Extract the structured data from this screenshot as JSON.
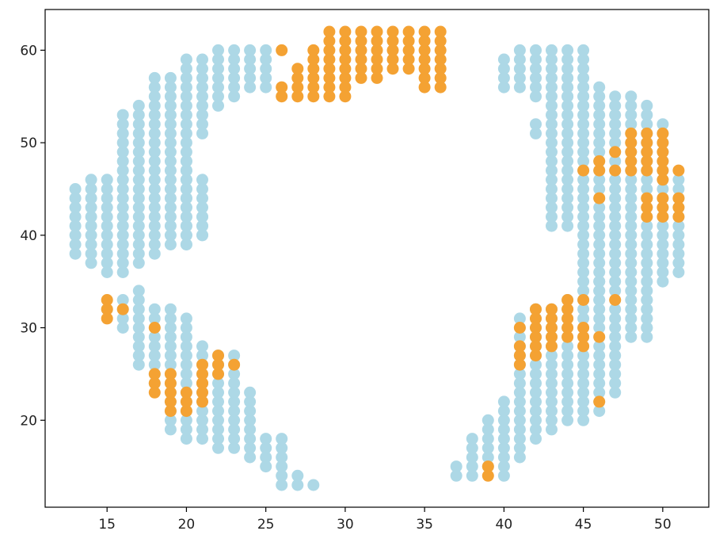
{
  "chart_data": {
    "type": "scatter",
    "title": "",
    "xlabel": "",
    "ylabel": "",
    "xlim": [
      11.1,
      52.9
    ],
    "ylim": [
      10.6,
      64.4
    ],
    "x_ticks": [
      15,
      20,
      25,
      30,
      35,
      40,
      45,
      50
    ],
    "y_ticks": [
      20,
      30,
      40,
      50,
      60
    ],
    "x_tick_labels": [
      "15",
      "20",
      "25",
      "30",
      "35",
      "40",
      "45",
      "50"
    ],
    "y_tick_labels": [
      "20",
      "30",
      "40",
      "50",
      "60"
    ],
    "grid": false,
    "legend": "none",
    "colors": {
      "light": "#add8e6",
      "orange": "#f4a233",
      "axis": "#000000"
    },
    "series": [
      {
        "color": "light",
        "ranges": [
          [
            13,
            38,
            45
          ],
          [
            14,
            37,
            46
          ],
          [
            15,
            36,
            46
          ],
          [
            16,
            36,
            53
          ],
          [
            17,
            37,
            54
          ],
          [
            18,
            38,
            57
          ],
          [
            19,
            39,
            57
          ],
          [
            20,
            39,
            59
          ],
          [
            21,
            51,
            59
          ],
          [
            22,
            54,
            60
          ],
          [
            23,
            55,
            60
          ],
          [
            24,
            56,
            60
          ],
          [
            25,
            56,
            60
          ],
          [
            20,
            39,
            48
          ],
          [
            21,
            40,
            46
          ],
          [
            21,
            40,
            42
          ],
          [
            16,
            30,
            33
          ],
          [
            17,
            26,
            34
          ],
          [
            18,
            24,
            32
          ],
          [
            19,
            19,
            32
          ],
          [
            20,
            18,
            31
          ],
          [
            21,
            18,
            28
          ],
          [
            22,
            17,
            27
          ],
          [
            23,
            17,
            27
          ],
          [
            24,
            16,
            23
          ],
          [
            25,
            15,
            18
          ],
          [
            26,
            13,
            18
          ],
          [
            27,
            13,
            14
          ],
          [
            28,
            13,
            13
          ],
          [
            40,
            56,
            59
          ],
          [
            41,
            56,
            60
          ],
          [
            42,
            55,
            60
          ],
          [
            43,
            55,
            60
          ],
          [
            44,
            55,
            60
          ],
          [
            45,
            54,
            60
          ],
          [
            42,
            51,
            52
          ],
          [
            43,
            41,
            54
          ],
          [
            44,
            41,
            57
          ],
          [
            45,
            33,
            56
          ],
          [
            46,
            33,
            56
          ],
          [
            47,
            23,
            55
          ],
          [
            48,
            29,
            55
          ],
          [
            49,
            29,
            54
          ],
          [
            50,
            35,
            52
          ],
          [
            51,
            36,
            46
          ],
          [
            37,
            14,
            15
          ],
          [
            38,
            14,
            18
          ],
          [
            39,
            15,
            20
          ],
          [
            40,
            14,
            22
          ],
          [
            41,
            16,
            31
          ],
          [
            42,
            18,
            32
          ],
          [
            43,
            19,
            32
          ],
          [
            44,
            20,
            33
          ],
          [
            45,
            20,
            34
          ],
          [
            46,
            21,
            35
          ]
        ],
        "extra": [
          [
            15,
            32
          ],
          [
            49,
            33
          ],
          [
            49,
            32
          ],
          [
            49,
            31
          ],
          [
            49,
            30
          ]
        ]
      },
      {
        "color": "orange",
        "ranges": [
          [
            26,
            55,
            56
          ],
          [
            27,
            55,
            58
          ],
          [
            28,
            55,
            60
          ],
          [
            29,
            55,
            62
          ],
          [
            30,
            55,
            62
          ],
          [
            31,
            57,
            62
          ],
          [
            32,
            57,
            62
          ],
          [
            33,
            58,
            62
          ],
          [
            34,
            58,
            62
          ],
          [
            35,
            56,
            62
          ],
          [
            36,
            56,
            62
          ],
          [
            15,
            31,
            33
          ],
          [
            18,
            23,
            25
          ],
          [
            19,
            21,
            25
          ],
          [
            20,
            21,
            23
          ],
          [
            21,
            22,
            26
          ],
          [
            22,
            25,
            27
          ],
          [
            41,
            26,
            28
          ],
          [
            42,
            27,
            32
          ],
          [
            43,
            29,
            32
          ],
          [
            44,
            29,
            33
          ],
          [
            45,
            28,
            30
          ],
          [
            48,
            47,
            51
          ],
          [
            49,
            47,
            51
          ],
          [
            50,
            46,
            51
          ],
          [
            50,
            42,
            44
          ],
          [
            49,
            42,
            44
          ],
          [
            51,
            42,
            44
          ]
        ],
        "extra": [
          [
            26,
            60
          ],
          [
            16,
            32
          ],
          [
            18,
            30
          ],
          [
            21,
            24
          ],
          [
            23,
            26
          ],
          [
            41,
            30
          ],
          [
            45,
            33
          ],
          [
            46,
            29
          ],
          [
            43,
            28
          ],
          [
            47,
            33
          ],
          [
            46,
            22
          ],
          [
            39,
            14
          ],
          [
            39,
            15
          ],
          [
            45,
            47
          ],
          [
            46,
            47
          ],
          [
            46,
            48
          ],
          [
            46,
            44
          ],
          [
            47,
            49
          ],
          [
            47,
            47
          ],
          [
            51,
            47
          ]
        ]
      }
    ]
  }
}
